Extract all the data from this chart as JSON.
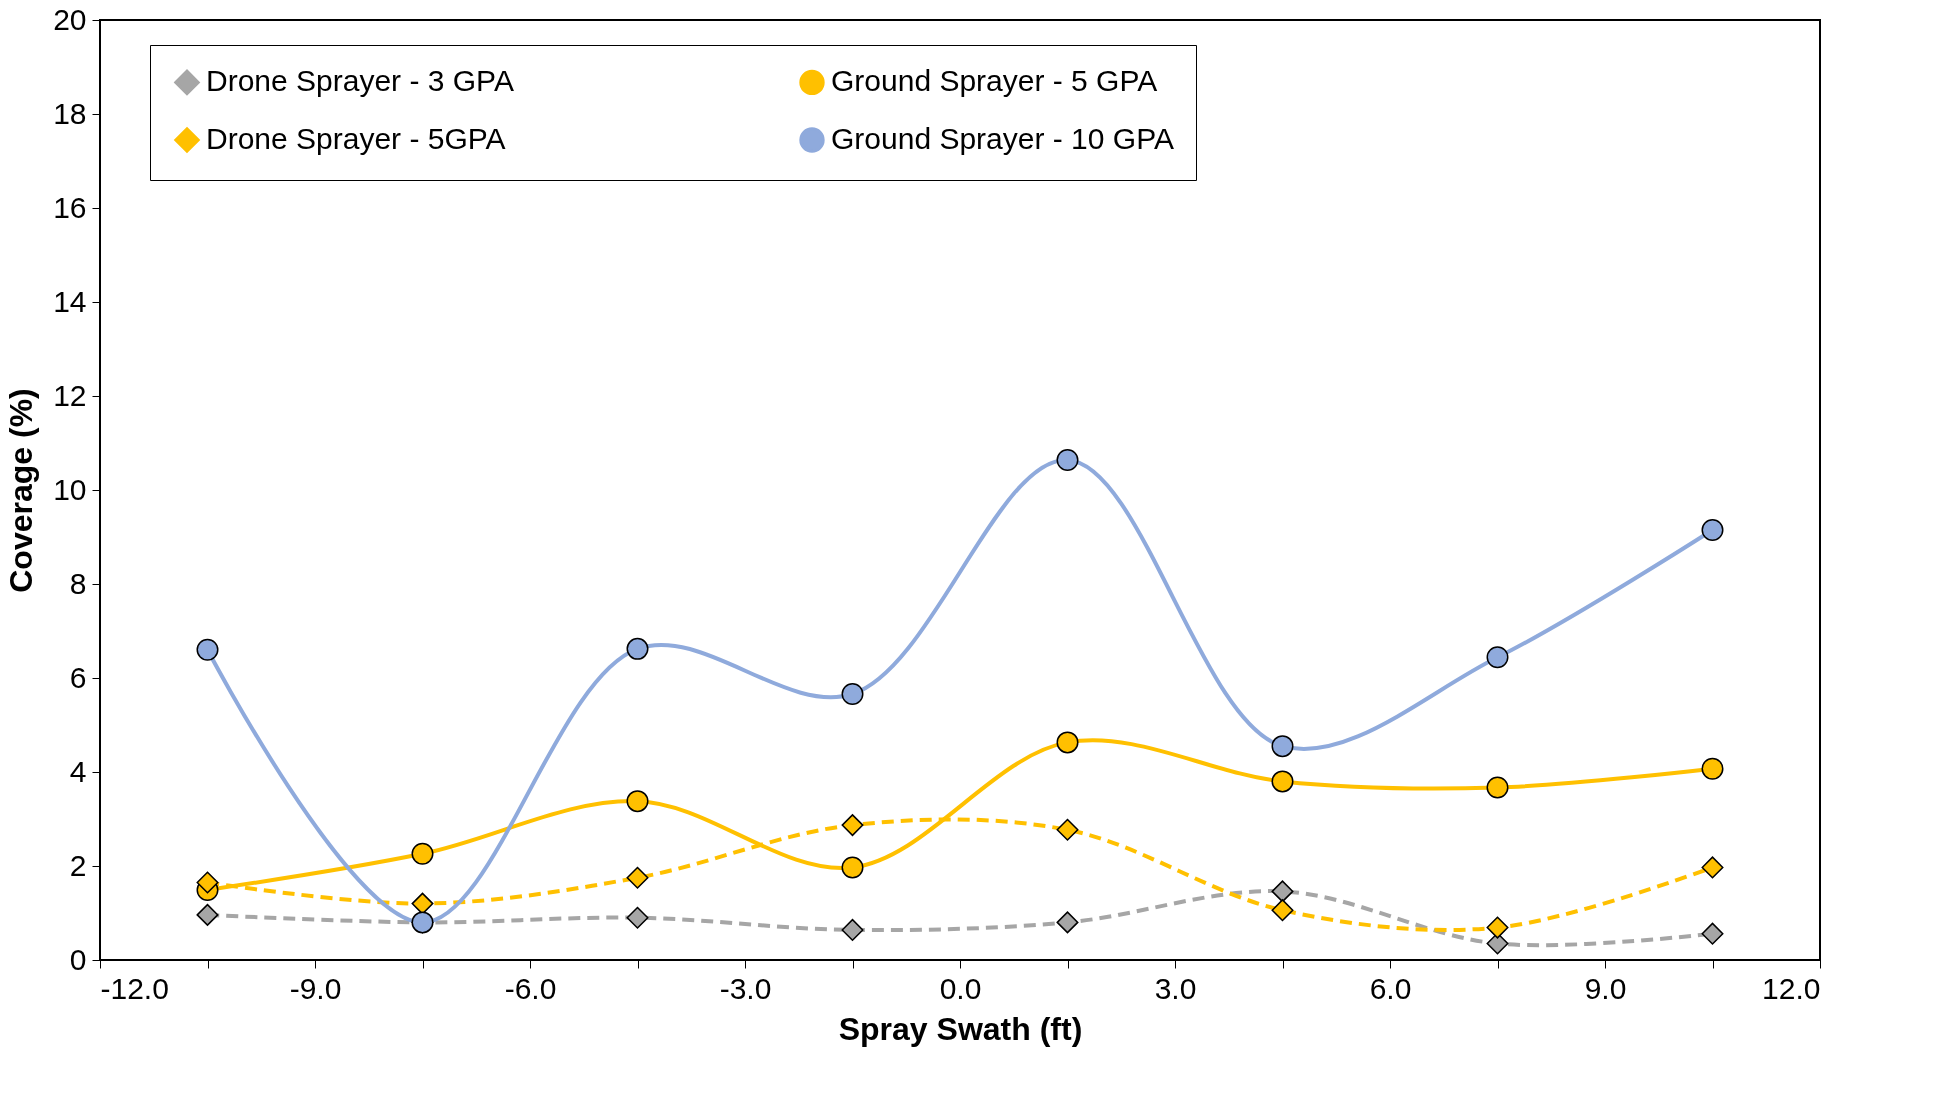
{
  "chart_data": {
    "type": "line",
    "xlabel": "Spray Swath (ft)",
    "ylabel": "Coverage (%)",
    "x": [
      -10.5,
      -7.5,
      -4.5,
      -1.5,
      1.5,
      4.5,
      7.5,
      10.5
    ],
    "series": [
      {
        "name": "Drone Sprayer - 3 GPA",
        "color": "#a6a6a6",
        "marker": "diamond",
        "line_style": "dashed",
        "values": [
          0.96,
          0.8,
          0.9,
          0.64,
          0.8,
          1.46,
          0.35,
          0.56
        ]
      },
      {
        "name": "Ground Sprayer - 5 GPA",
        "color": "#ffc000",
        "marker": "circle",
        "line_style": "solid",
        "values": [
          1.49,
          2.26,
          3.38,
          1.97,
          4.63,
          3.8,
          3.67,
          4.07
        ]
      },
      {
        "name": "Drone Sprayer - 5GPA",
        "color": "#ffc000",
        "marker": "diamond",
        "line_style": "dashed",
        "values": [
          1.65,
          1.2,
          1.75,
          2.87,
          2.77,
          1.06,
          0.69,
          1.97
        ]
      },
      {
        "name": "Ground Sprayer - 10 GPA",
        "color": "#8faadc",
        "marker": "circle",
        "line_style": "solid",
        "values": [
          6.6,
          0.8,
          6.62,
          5.66,
          10.64,
          4.55,
          6.44,
          9.15
        ]
      }
    ],
    "xlim": [
      -12,
      12
    ],
    "xticks": [
      {
        "value": -12,
        "label": "-12.0"
      },
      {
        "value": -10.5,
        "label": null
      },
      {
        "value": -9,
        "label": "-9.0"
      },
      {
        "value": -7.5,
        "label": null
      },
      {
        "value": -6,
        "label": "-6.0"
      },
      {
        "value": -4.5,
        "label": null
      },
      {
        "value": -3,
        "label": "-3.0"
      },
      {
        "value": -1.5,
        "label": null
      },
      {
        "value": 0,
        "label": "0.0"
      },
      {
        "value": 1.5,
        "label": null
      },
      {
        "value": 3,
        "label": "3.0"
      },
      {
        "value": 4.5,
        "label": null
      },
      {
        "value": 6,
        "label": "6.0"
      },
      {
        "value": 7.5,
        "label": null
      },
      {
        "value": 9,
        "label": "9.0"
      },
      {
        "value": 10.5,
        "label": null
      },
      {
        "value": 12,
        "label": "12.0"
      }
    ],
    "ylim": [
      0,
      20
    ],
    "yticks": [
      0,
      2,
      4,
      6,
      8,
      10,
      12,
      14,
      16,
      18,
      20
    ],
    "grid": false,
    "legend": "top"
  }
}
